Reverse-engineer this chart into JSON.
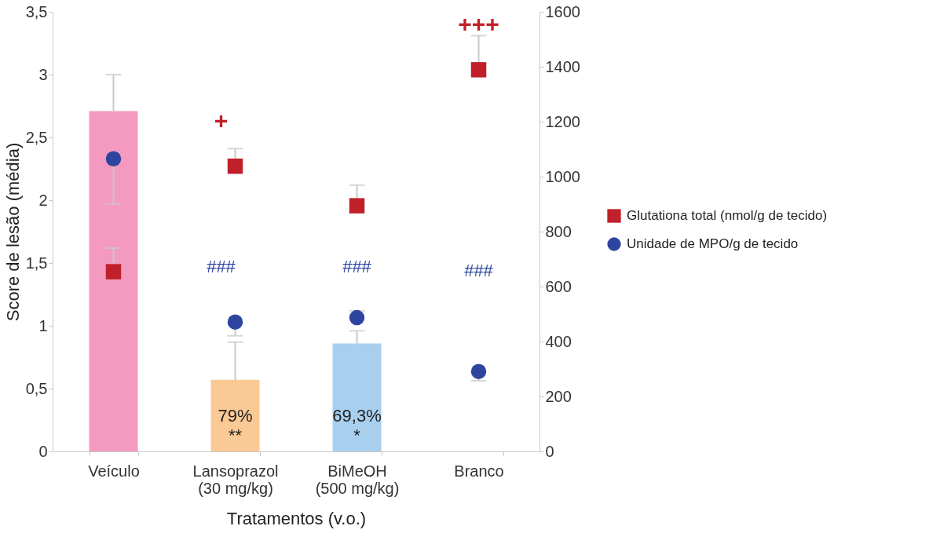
{
  "chart_data": {
    "type": "bar",
    "categories": [
      "Veículo",
      "Lansoprazol\n(30 mg/kg)",
      "BiMeOH\n(500 mg/kg)",
      "Branco"
    ],
    "values": [
      2.71,
      0.57,
      0.86,
      0
    ],
    "colors": [
      "#f49ac1",
      "#fbc995",
      "#a9cfee",
      "#a9cfee"
    ],
    "errors": [
      [
        2.71,
        3.0
      ],
      [
        0.57,
        0.87
      ],
      [
        0.86,
        0.96
      ],
      null
    ],
    "xlabel": "Tratamentos (v.o.)",
    "ylabel": "Score de lesão (média)",
    "ylim": [
      0,
      3.5
    ],
    "yticks": [
      0,
      {
        "value": 0.5,
        "label": "0,5"
      },
      1,
      {
        "value": 1.5,
        "label": "1,5"
      },
      2,
      {
        "value": 2.5,
        "label": "2,5"
      },
      3,
      {
        "value": 3.5,
        "label": "3,5"
      }
    ],
    "y2lim": [
      0,
      1600
    ],
    "y2ticks": [
      0,
      200,
      400,
      600,
      800,
      1000,
      1200,
      1400,
      1600
    ],
    "grid": false,
    "legend": "right",
    "series": [
      {
        "name": "Glutationa total (nmol/g de tecido)",
        "type": "scatter",
        "axis": "y2",
        "marker": "square",
        "color": "#c0202a",
        "values": [
          654,
          1038,
          894,
          1389
        ],
        "errors": [
          [
            654,
            740
          ],
          [
            1038,
            1102
          ],
          [
            894,
            969
          ],
          [
            1389,
            1513
          ]
        ]
      },
      {
        "name": "Unidade de MPO/g de tecido",
        "type": "scatter",
        "axis": "y2",
        "marker": "circle",
        "color": "#2e45a0",
        "values": [
          1065,
          471,
          487,
          291
        ],
        "errors": [
          [
            900,
            1065
          ],
          [
            421,
            471
          ],
          [
            487,
            512
          ],
          [
            257,
            291
          ]
        ]
      }
    ],
    "annotations": [
      "79%",
      "**",
      "69,3%",
      "*",
      "+",
      "+++",
      "###",
      "###",
      "###"
    ]
  }
}
